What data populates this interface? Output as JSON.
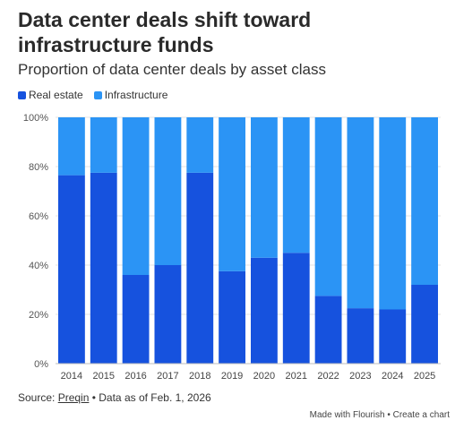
{
  "title": "Data center deals shift toward infrastructure funds",
  "subtitle": "Proportion of data center deals by asset class",
  "legend": [
    {
      "label": "Real estate",
      "color": "#1652de"
    },
    {
      "label": "Infrastructure",
      "color": "#2b94f5"
    }
  ],
  "source": {
    "prefix": "Source: ",
    "link": "Preqin",
    "suffix": " • Data as of Feb. 1, 2026"
  },
  "credit": "Made with Flourish • Create a chart",
  "chart_data": {
    "type": "bar",
    "stacked": true,
    "categories": [
      "2014",
      "2015",
      "2016",
      "2017",
      "2018",
      "2019",
      "2020",
      "2021",
      "2022",
      "2023",
      "2024",
      "2025"
    ],
    "series": [
      {
        "name": "Real estate",
        "color": "#1652de",
        "values": [
          76.5,
          77.5,
          36,
          40,
          77.5,
          37.5,
          43,
          45,
          27.5,
          22.5,
          22,
          32
        ]
      },
      {
        "name": "Infrastructure",
        "color": "#2b94f5",
        "values": [
          23.5,
          22.5,
          64,
          60,
          22.5,
          62.5,
          57,
          55,
          72.5,
          77.5,
          78,
          68
        ]
      }
    ],
    "yticks": [
      "0%",
      "20%",
      "40%",
      "60%",
      "80%",
      "100%"
    ],
    "ylim": [
      0,
      100
    ],
    "grid": true,
    "legend_position": "top-left"
  }
}
